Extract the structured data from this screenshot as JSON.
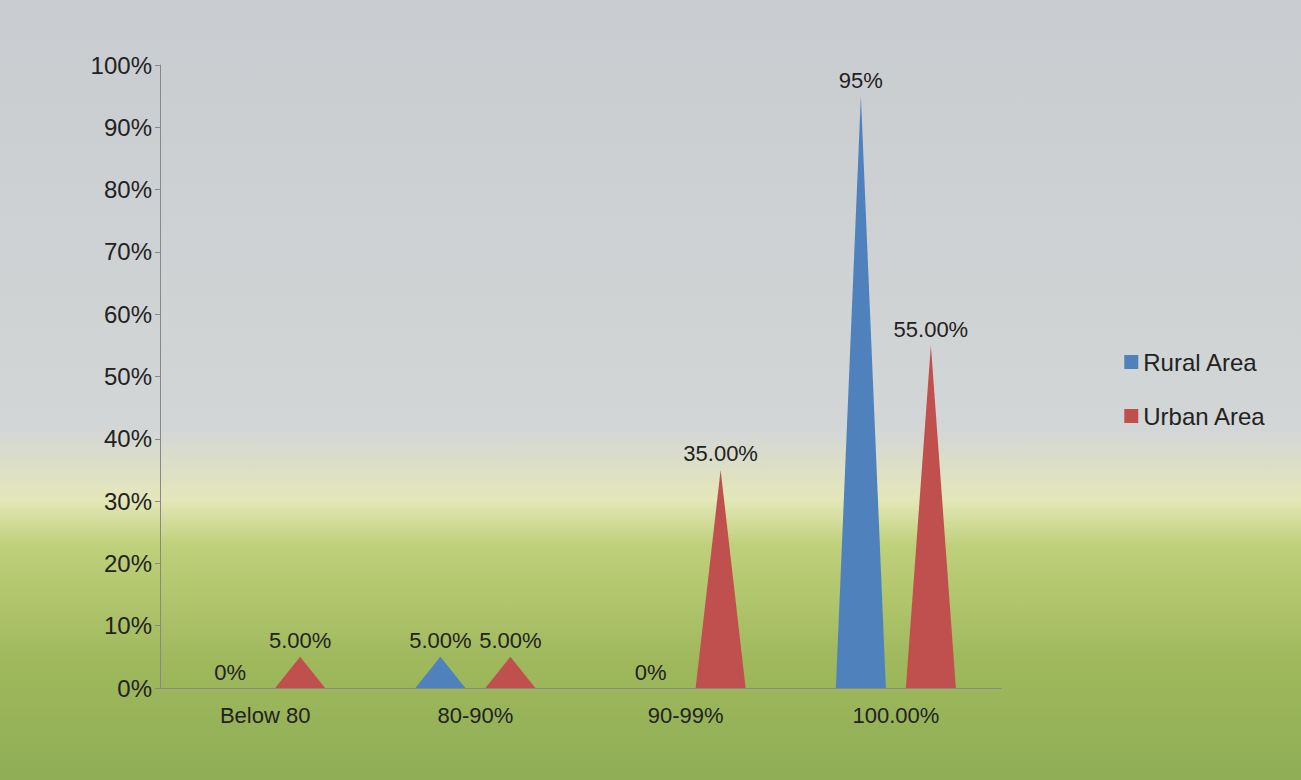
{
  "chart_data": {
    "type": "bar",
    "categories": [
      "Below 80",
      "80-90%",
      "90-99%",
      "100.00%"
    ],
    "series": [
      {
        "name": "Rural Area",
        "color": "#4f81bd",
        "values": [
          0,
          5,
          0,
          95
        ],
        "value_labels": [
          "0%",
          "5.00%",
          "0%",
          "95%"
        ]
      },
      {
        "name": "Urban Area",
        "color": "#c0504d",
        "values": [
          5,
          5,
          35,
          55
        ],
        "value_labels": [
          "5.00%",
          "5.00%",
          "35.00%",
          "55.00%"
        ]
      }
    ],
    "ylim": [
      0,
      100
    ],
    "yticks": [
      {
        "value": 0,
        "label": "0%"
      },
      {
        "value": 10,
        "label": "10%"
      },
      {
        "value": 20,
        "label": "20%"
      },
      {
        "value": 30,
        "label": "30%"
      },
      {
        "value": 40,
        "label": "40%"
      },
      {
        "value": 50,
        "label": "50%"
      },
      {
        "value": 60,
        "label": "60%"
      },
      {
        "value": 70,
        "label": "70%"
      },
      {
        "value": 80,
        "label": "80%"
      },
      {
        "value": 90,
        "label": "90%"
      },
      {
        "value": 100,
        "label": "100%"
      }
    ],
    "grid": false,
    "legend": "right",
    "data_labels": true
  }
}
